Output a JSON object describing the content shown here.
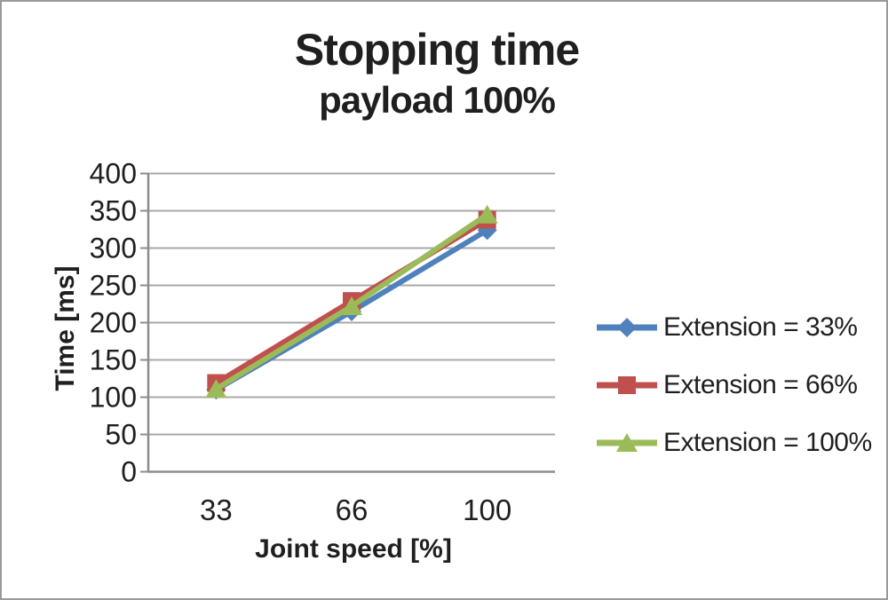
{
  "chart_data": {
    "type": "line",
    "title": "Stopping time",
    "subtitle": "payload 100%",
    "xlabel": "Joint speed [%]",
    "ylabel": "Time [ms]",
    "categories": [
      "33",
      "66",
      "100"
    ],
    "yticks": [
      0,
      50,
      100,
      150,
      200,
      250,
      300,
      350,
      400
    ],
    "ylim": [
      0,
      400
    ],
    "grid": true,
    "legend_position": "right",
    "series": [
      {
        "name": "Extension = 33%",
        "marker": "diamond",
        "color": "#4F81BD",
        "values": [
          110,
          215,
          324
        ]
      },
      {
        "name": "Extension = 66%",
        "marker": "square",
        "color": "#C0504D",
        "values": [
          119,
          229,
          338
        ]
      },
      {
        "name": "Extension = 100%",
        "marker": "triangle",
        "color": "#9BBB59",
        "values": [
          111,
          222,
          345
        ]
      }
    ],
    "colors": {
      "gridline": "#A8A8A8",
      "axis": "#8C8C8C",
      "text": "#1F1F1F",
      "frame": "#9A9A9A",
      "background": "#FFFFFF"
    }
  }
}
